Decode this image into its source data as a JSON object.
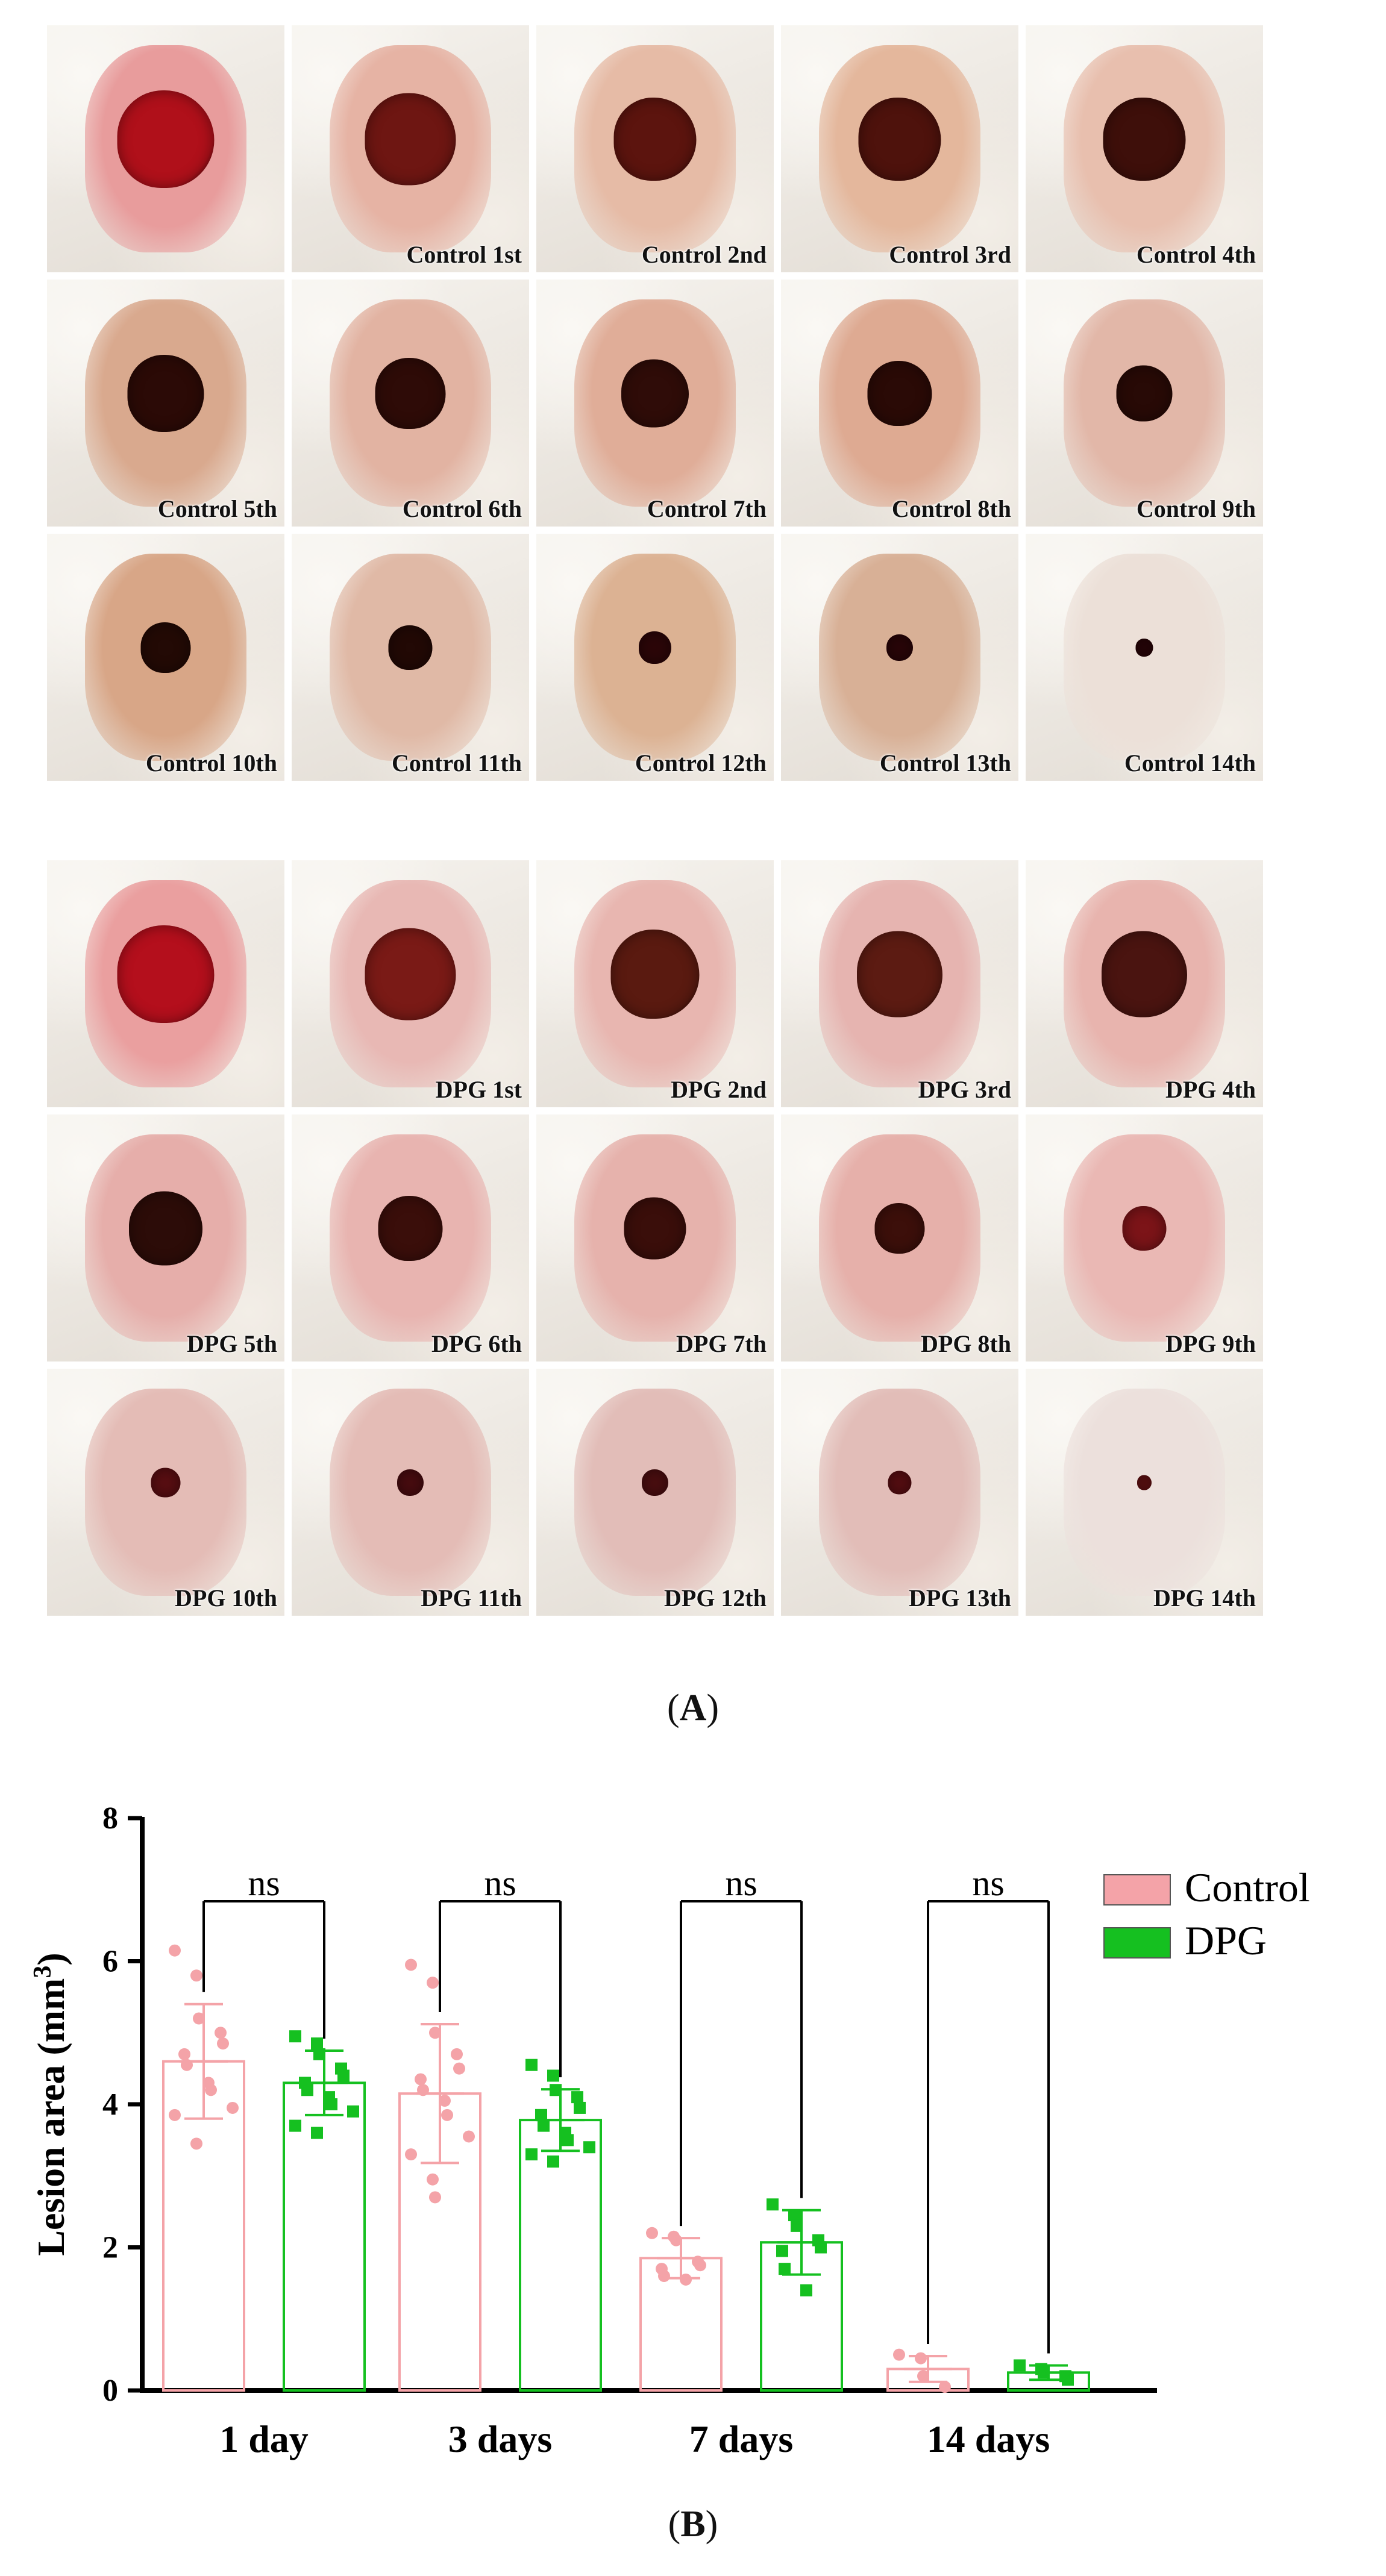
{
  "panel_a": {
    "label": "(A)",
    "label_letter": "A",
    "control_tiles": [
      {
        "label": "",
        "skin": "#e89c9c",
        "lesion": "#b0101a",
        "size": 0.66
      },
      {
        "label": "Control 1st",
        "skin": "#e6b3a4",
        "lesion": "#6e1612",
        "size": 0.62
      },
      {
        "label": "Control 2nd",
        "skin": "#e6bba6",
        "lesion": "#5c140e",
        "size": 0.56
      },
      {
        "label": "Control 3rd",
        "skin": "#e4b79c",
        "lesion": "#4e120c",
        "size": 0.56
      },
      {
        "label": "Control 4th",
        "skin": "#e8bfae",
        "lesion": "#3e0f0a",
        "size": 0.56
      },
      {
        "label": "Control 5th",
        "skin": "#d9a98e",
        "lesion": "#2b0a06",
        "size": 0.52
      },
      {
        "label": "Control 6th",
        "skin": "#e2b3a2",
        "lesion": "#2e0b07",
        "size": 0.48
      },
      {
        "label": "Control 7th",
        "skin": "#e0ad98",
        "lesion": "#2f0c08",
        "size": 0.46
      },
      {
        "label": "Control 8th",
        "skin": "#deaa92",
        "lesion": "#2a0a06",
        "size": 0.44
      },
      {
        "label": "Control 9th",
        "skin": "#e2b7a8",
        "lesion": "#280a06",
        "size": 0.38
      },
      {
        "label": "Control 10th",
        "skin": "#d8a687",
        "lesion": "#230a05",
        "size": 0.34
      },
      {
        "label": "Control 11th",
        "skin": "#e0b9a6",
        "lesion": "#220905",
        "size": 0.3
      },
      {
        "label": "Control 12th",
        "skin": "#dcb293",
        "lesion": "#2c0608",
        "size": 0.22
      },
      {
        "label": "Control 13th",
        "skin": "#d8b096",
        "lesion": "#2a0508",
        "size": 0.18
      },
      {
        "label": "Control 14th",
        "skin": "#ece0d8",
        "lesion": "#2a0508",
        "size": 0.12
      }
    ],
    "dpg_tiles": [
      {
        "label": "",
        "skin": "#ea9f9f",
        "lesion": "#b40f1c",
        "size": 0.66
      },
      {
        "label": "DPG 1st",
        "skin": "#e8b8b4",
        "lesion": "#7a1a16",
        "size": 0.62
      },
      {
        "label": "DPG 2nd",
        "skin": "#e8b6b0",
        "lesion": "#5a1a10",
        "size": 0.6
      },
      {
        "label": "DPG 3rd",
        "skin": "#e6b4b0",
        "lesion": "#5c1b12",
        "size": 0.58
      },
      {
        "label": "DPG 4th",
        "skin": "#e8b4ae",
        "lesion": "#4a1410",
        "size": 0.58
      },
      {
        "label": "DPG 5th",
        "skin": "#e6aeaa",
        "lesion": "#2c0c08",
        "size": 0.5
      },
      {
        "label": "DPG 6th",
        "skin": "#e8b4b0",
        "lesion": "#3a0e0a",
        "size": 0.44
      },
      {
        "label": "DPG 7th",
        "skin": "#e6b2ac",
        "lesion": "#3a0e0a",
        "size": 0.42
      },
      {
        "label": "DPG 8th",
        "skin": "#e6b0aa",
        "lesion": "#3c0f0a",
        "size": 0.34
      },
      {
        "label": "DPG 9th",
        "skin": "#eab8b4",
        "lesion": "#7c1418",
        "size": 0.3
      },
      {
        "label": "DPG 10th",
        "skin": "#e4bcb6",
        "lesion": "#5a0e12",
        "size": 0.2
      },
      {
        "label": "DPG 11th",
        "skin": "#e4bcb6",
        "lesion": "#4a0c10",
        "size": 0.18
      },
      {
        "label": "DPG 12th",
        "skin": "#e2bdb8",
        "lesion": "#4c0e10",
        "size": 0.18
      },
      {
        "label": "DPG 13th",
        "skin": "#e2bdb8",
        "lesion": "#5a0e12",
        "size": 0.16
      },
      {
        "label": "DPG 14th",
        "skin": "#ece0dc",
        "lesion": "#6a1214",
        "size": 0.1
      }
    ]
  },
  "panel_b": {
    "label": "(B)",
    "label_letter": "B"
  },
  "chart_data": {
    "type": "bar",
    "title": "",
    "xlabel": "",
    "ylabel": "Lesion area (mm",
    "ylabel_superscript": "3",
    "ylabel_close": ")",
    "ylim": [
      0,
      8
    ],
    "yticks": [
      "0",
      "2",
      "4",
      "6",
      "8"
    ],
    "grid": false,
    "legend_position": "right",
    "categories": [
      "1 day",
      "3 days",
      "7 days",
      "14 days"
    ],
    "significance": [
      "ns",
      "ns",
      "ns",
      "ns"
    ],
    "series": [
      {
        "name": "Control",
        "color": "#f4a3a8",
        "marker": "circle",
        "values": [
          4.6,
          4.15,
          1.85,
          0.3
        ],
        "errors": [
          0.8,
          0.97,
          0.28,
          0.18
        ],
        "points": [
          [
            6.15,
            5.8,
            5.2,
            5.0,
            4.85,
            4.7,
            4.55,
            4.3,
            4.2,
            3.95,
            3.85,
            3.45
          ],
          [
            5.95,
            5.7,
            5.0,
            4.7,
            4.5,
            4.35,
            4.2,
            4.05,
            3.85,
            3.55,
            3.3,
            2.95,
            2.7
          ],
          [
            2.2,
            2.15,
            2.1,
            1.8,
            1.75,
            1.7,
            1.6,
            1.55
          ],
          [
            0.5,
            0.45,
            0.2,
            0.05
          ]
        ]
      },
      {
        "name": "DPG",
        "color": "#15c020",
        "marker": "square",
        "values": [
          4.3,
          3.78,
          2.07,
          0.25
        ],
        "errors": [
          0.45,
          0.43,
          0.45,
          0.1
        ],
        "points": [
          [
            4.95,
            4.85,
            4.7,
            4.5,
            4.4,
            4.3,
            4.2,
            4.1,
            4.0,
            3.9,
            3.7,
            3.6
          ],
          [
            4.55,
            4.4,
            4.2,
            4.1,
            3.95,
            3.85,
            3.7,
            3.6,
            3.5,
            3.4,
            3.3,
            3.2
          ],
          [
            2.6,
            2.45,
            2.3,
            2.1,
            2.0,
            1.95,
            1.7,
            1.4
          ],
          [
            0.35,
            0.3,
            0.25,
            0.2,
            0.15
          ]
        ]
      }
    ]
  }
}
